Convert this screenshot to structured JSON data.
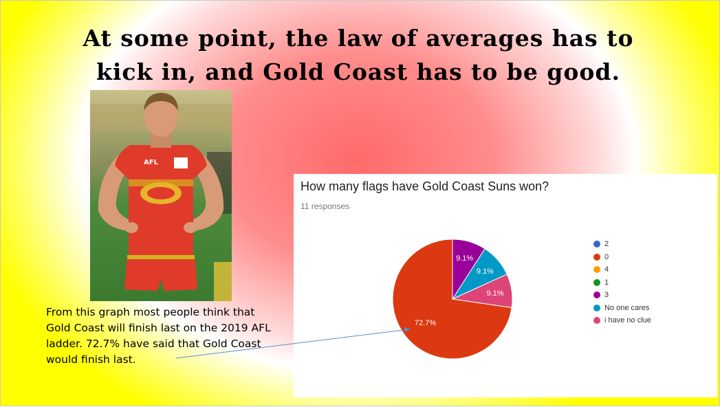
{
  "slide": {
    "title": "At some point, the law of averages has to kick in, and Gold Coast has to be good.",
    "caption": "From this graph most people think that Gold Coast will finish last on the 2019 AFL ladder. 72.7% have said that Gold Coast would finish last."
  },
  "photo": {
    "jersey_text": "AFL"
  },
  "chart_data": {
    "type": "pie",
    "title": "How many flags have Gold Coast Suns won?",
    "subtitle": "11 responses",
    "categories": [
      "2",
      "0",
      "4",
      "1",
      "3",
      "No one cares",
      "i have no clue"
    ],
    "values": [
      0,
      72.7,
      0,
      0,
      9.1,
      9.1,
      9.1
    ],
    "colors": [
      "#3366cc",
      "#dc3912",
      "#ff9900",
      "#109618",
      "#990099",
      "#0099c6",
      "#dd4477"
    ],
    "slice_labels": [
      "",
      "72.7%",
      "",
      "",
      "9.1%",
      "9.1%",
      "9.1%"
    ],
    "legend_position": "right"
  }
}
